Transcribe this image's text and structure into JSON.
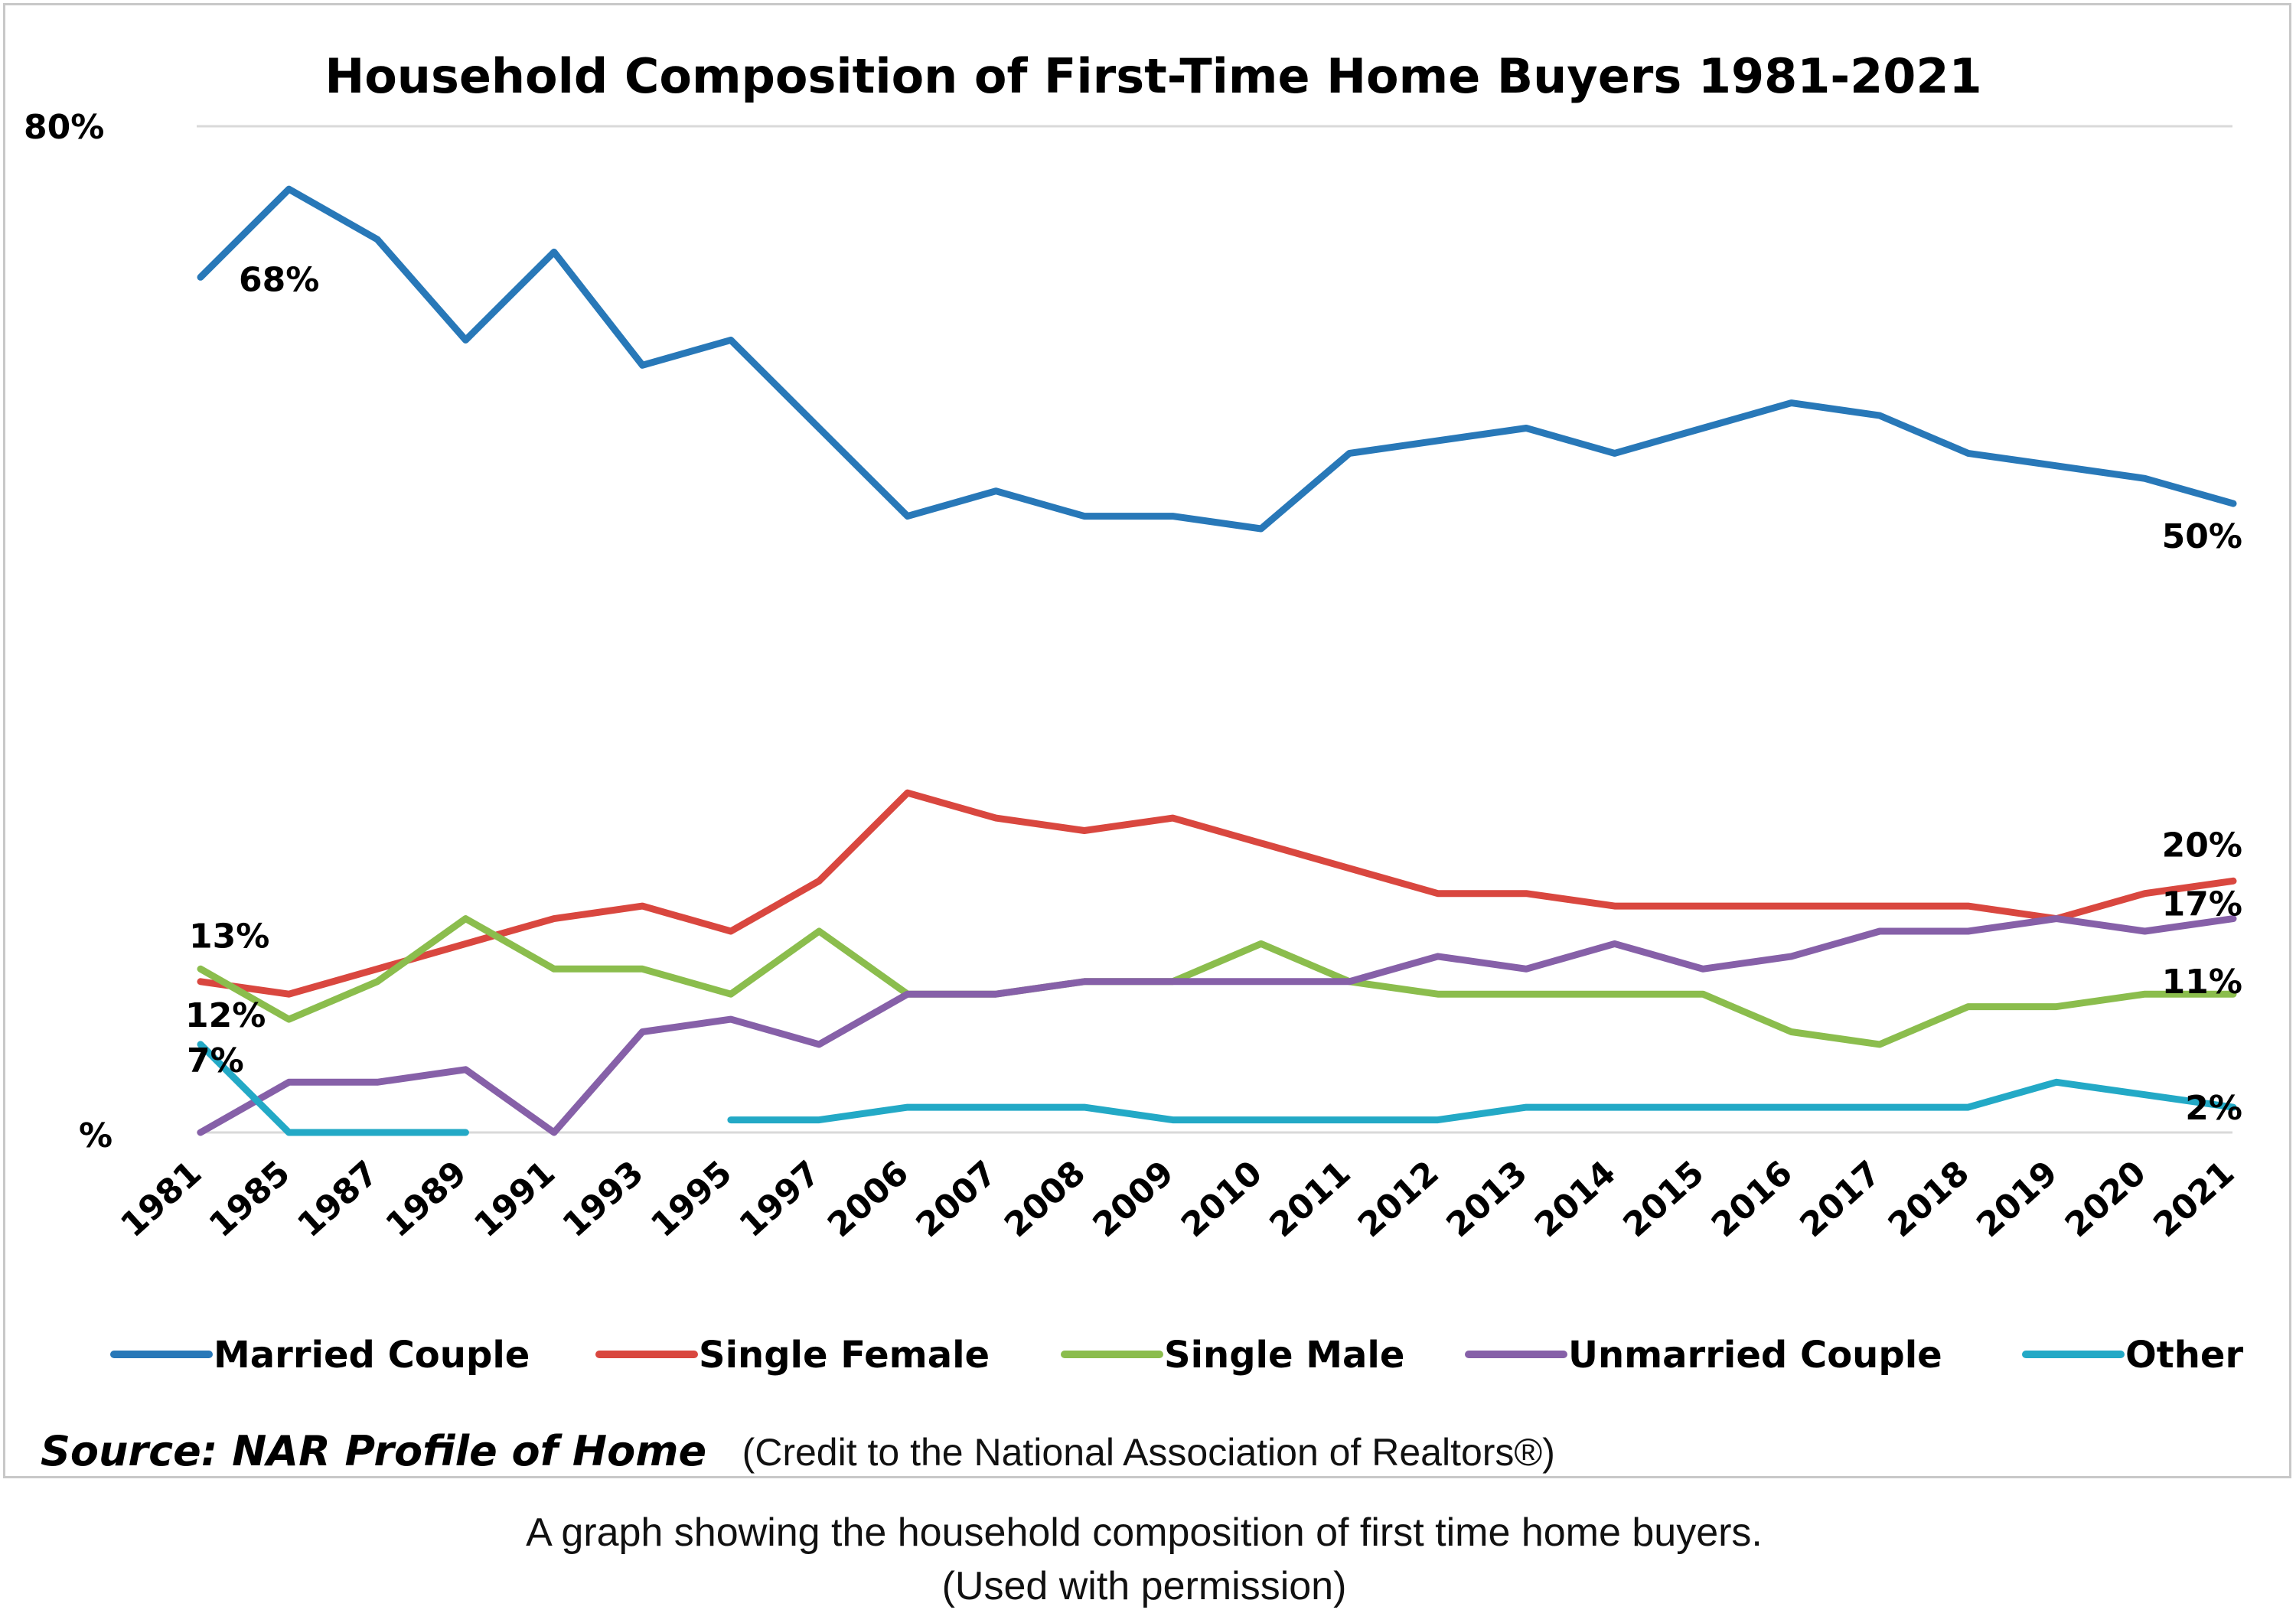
{
  "chart_data": {
    "type": "line",
    "title": "Household Composition of First-Time Home Buyers 1981-2021",
    "xlabel": "",
    "ylabel": "",
    "ylim": [
      0,
      80
    ],
    "y_tick_labels": [
      "80%",
      "%"
    ],
    "categories": [
      "1981",
      "1985",
      "1987",
      "1989",
      "1991",
      "1993",
      "1995",
      "1997",
      "2006",
      "2007",
      "2008",
      "2009",
      "2010",
      "2011",
      "2012",
      "2013",
      "2014",
      "2015",
      "2016",
      "2017",
      "2018",
      "2019",
      "2020",
      "2021"
    ],
    "series": [
      {
        "name": "Married Couple",
        "color": "#2878b8",
        "values": [
          68,
          75,
          71,
          63,
          70,
          61,
          63,
          56,
          49,
          51,
          49,
          49,
          48,
          54,
          55,
          56,
          54,
          56,
          58,
          57,
          54,
          53,
          52,
          50
        ]
      },
      {
        "name": "Single Female",
        "color": "#d9473f",
        "values": [
          12,
          11,
          13,
          15,
          17,
          18,
          16,
          20,
          27,
          25,
          24,
          25,
          23,
          21,
          19,
          19,
          18,
          18,
          18,
          18,
          18,
          17,
          19,
          20
        ]
      },
      {
        "name": "Single Male",
        "color": "#8bbd4d",
        "values": [
          13,
          9,
          12,
          17,
          13,
          13,
          11,
          16,
          11,
          11,
          12,
          12,
          15,
          12,
          11,
          11,
          11,
          11,
          8,
          7,
          10,
          10,
          11,
          11
        ]
      },
      {
        "name": "Unmarried Couple",
        "color": "#8660a8",
        "values": [
          0,
          4,
          4,
          5,
          0,
          8,
          9,
          7,
          11,
          11,
          12,
          12,
          12,
          12,
          14,
          13,
          15,
          13,
          14,
          16,
          16,
          17,
          16,
          17
        ]
      },
      {
        "name": "Other",
        "color": "#23a9c6",
        "values": [
          7,
          0,
          0,
          0,
          null,
          null,
          1,
          1,
          2,
          2,
          2,
          1,
          1,
          1,
          1,
          2,
          2,
          2,
          2,
          2,
          2,
          4,
          3,
          2
        ]
      }
    ],
    "annotations": [
      {
        "text": "68%",
        "series": "Married Couple",
        "category": "1981"
      },
      {
        "text": "50%",
        "series": "Married Couple",
        "category": "2021"
      },
      {
        "text": "13%",
        "series": "Single Male",
        "category": "1981"
      },
      {
        "text": "12%",
        "series": "Single Female",
        "category": "1981"
      },
      {
        "text": "7%",
        "series": "Other",
        "category": "1981"
      },
      {
        "text": "20%",
        "series": "Single Female",
        "category": "2021"
      },
      {
        "text": "17%",
        "series": "Unmarried Couple",
        "category": "2021"
      },
      {
        "text": "11%",
        "series": "Single Male",
        "category": "2021"
      },
      {
        "text": "2%",
        "series": "Other",
        "category": "2021"
      }
    ],
    "legend_position": "bottom",
    "grid": false
  },
  "source": {
    "label": "Source: NAR Profile of Home",
    "credit": "(Credit to the National Association of Realtors®)"
  },
  "caption": {
    "line1": "A graph showing the household composition of first time home buyers.",
    "line2": "(Used with permission)"
  }
}
